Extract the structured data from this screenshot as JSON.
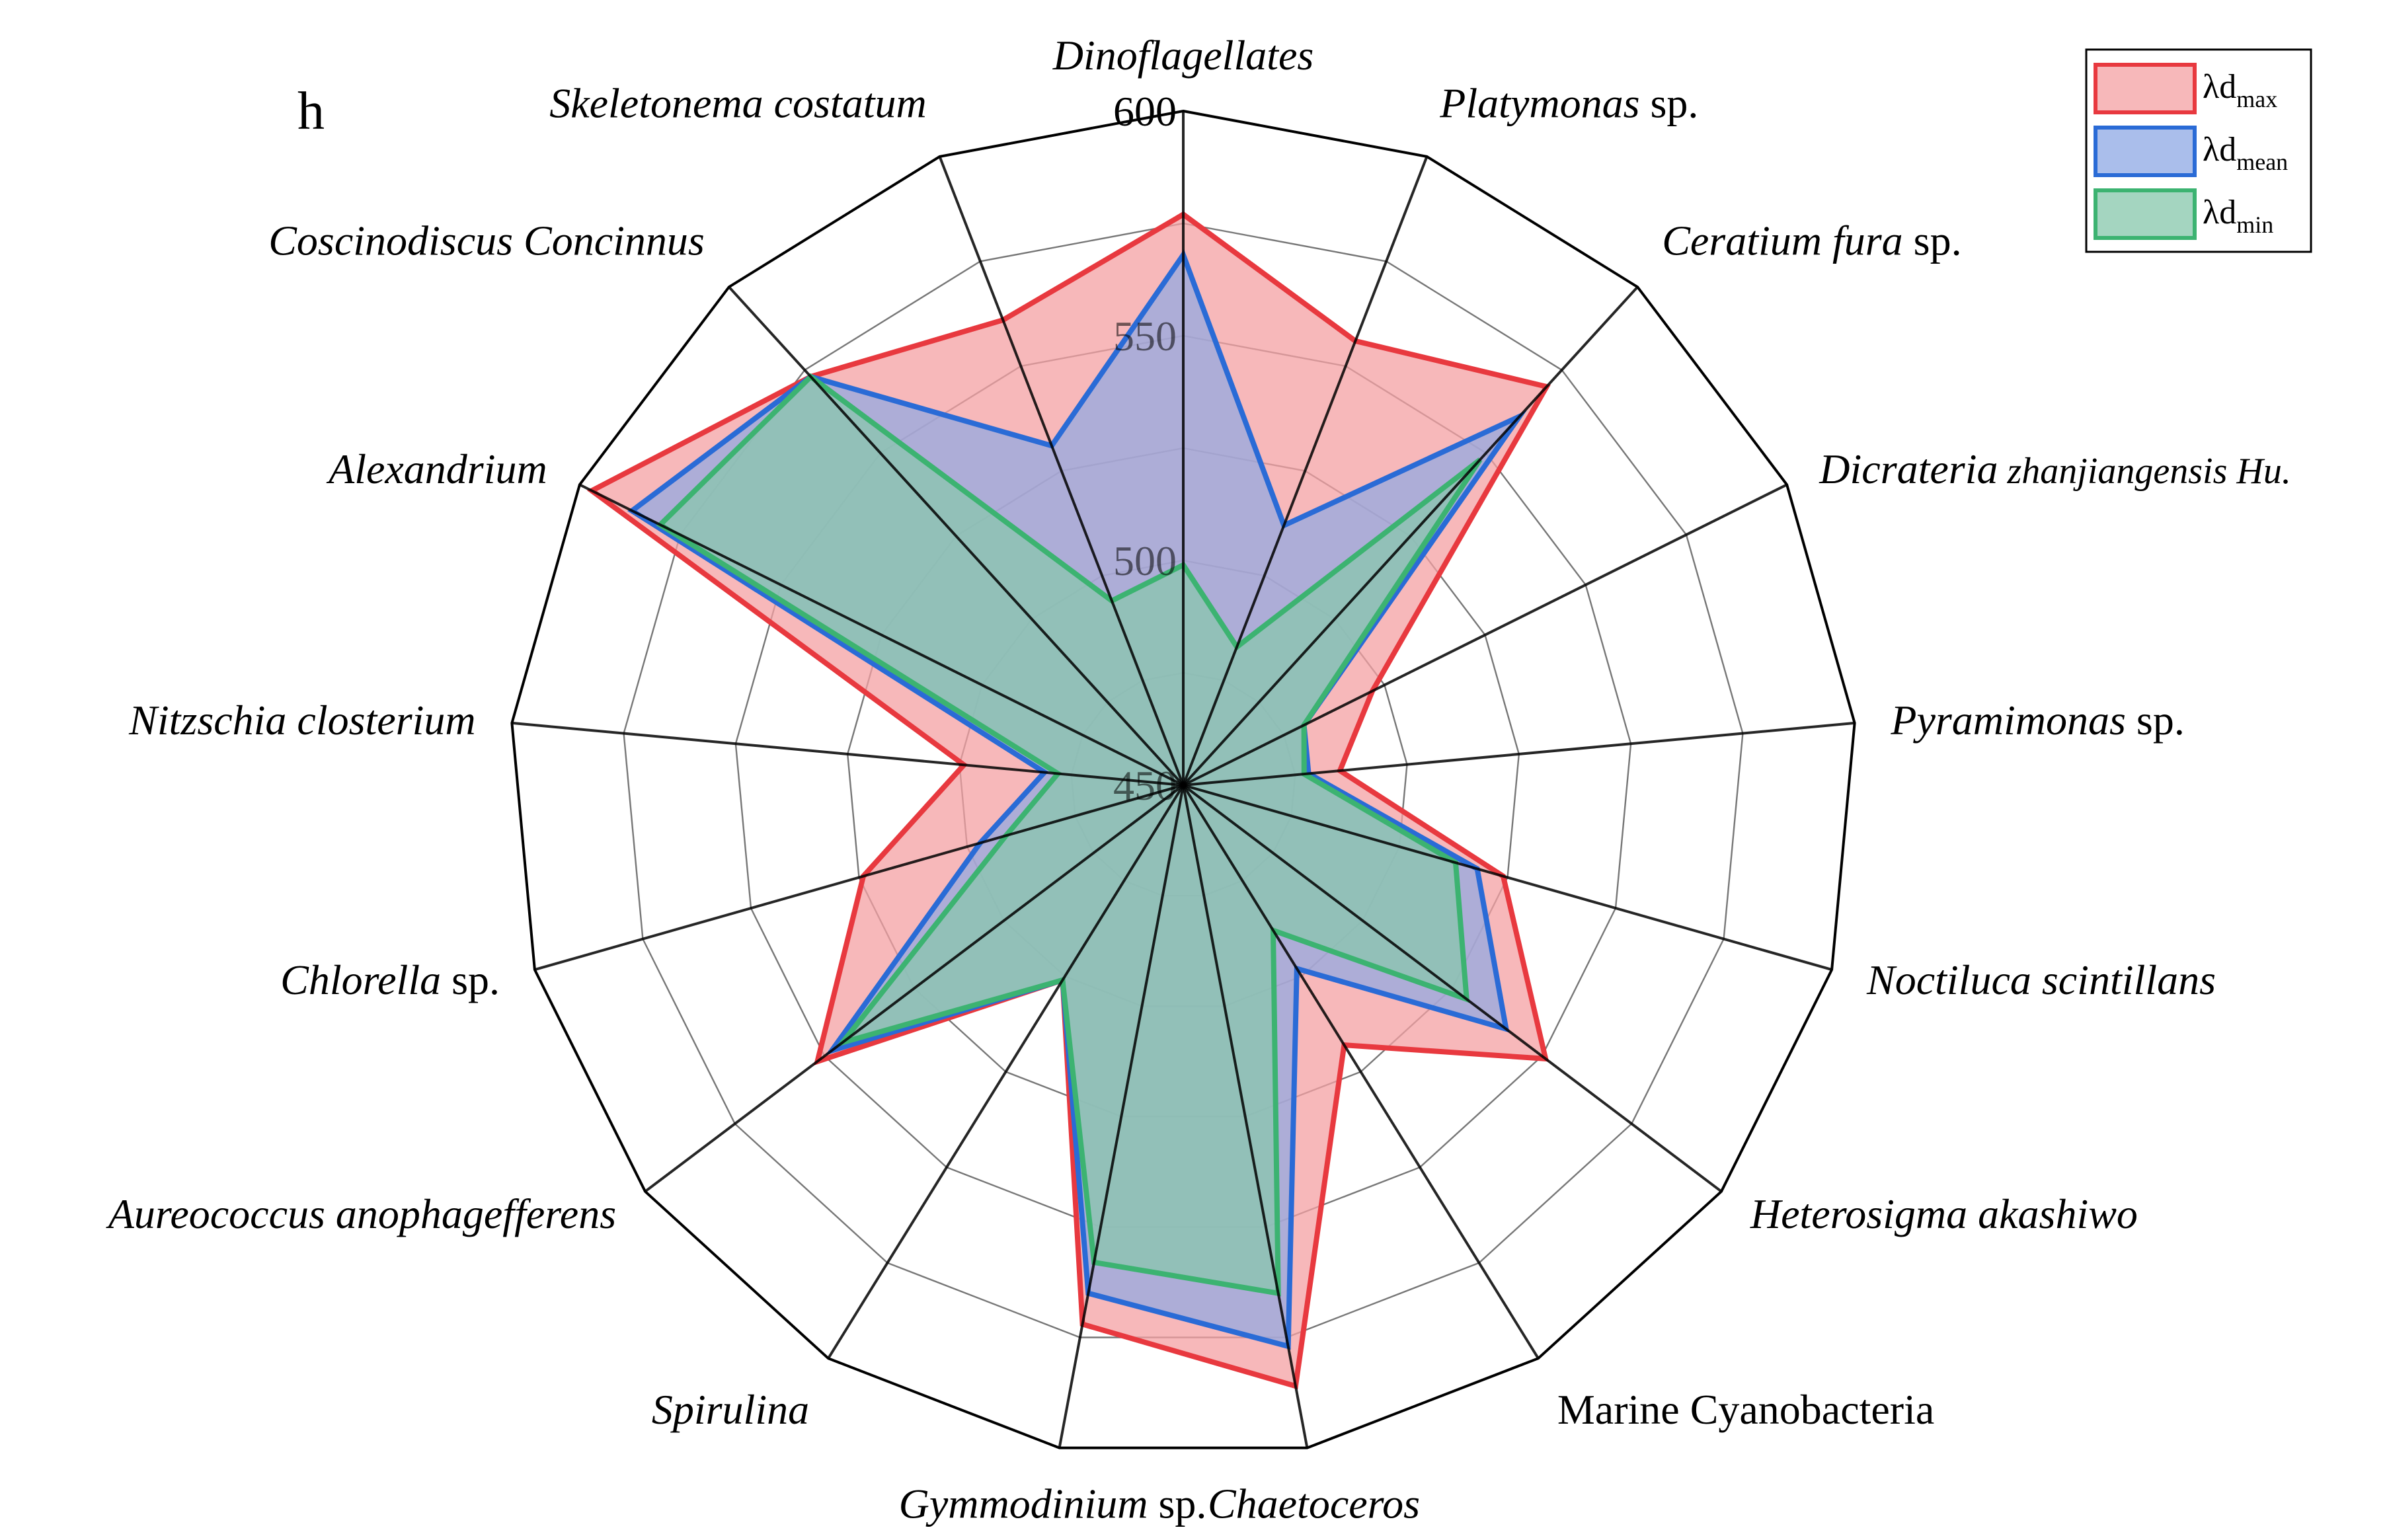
{
  "chart_data": {
    "type": "radar",
    "panel_label": "h",
    "radial_ticks": [
      "450",
      "500",
      "550",
      "600"
    ],
    "rlim": [
      450,
      600
    ],
    "grid": true,
    "legend_position": "top-right",
    "categories": [
      {
        "name": "Dinoflagellates",
        "rest": ""
      },
      {
        "name": "Platymonas",
        "rest": " sp."
      },
      {
        "name": "Ceratium fura",
        "rest": " sp."
      },
      {
        "name": "Dicrateria",
        "rest": " zhanjiangensis Hu."
      },
      {
        "name": "Pyramimonas",
        "rest": " sp."
      },
      {
        "name": "Noctiluca scintillans",
        "rest": ""
      },
      {
        "name": "Heterosigma akashiwo",
        "rest": ""
      },
      {
        "name": "",
        "rest": "Marine Cyanobacteria"
      },
      {
        "name": "Chaetoceros",
        "rest": ""
      },
      {
        "name": "Gymmodinium",
        "rest": " sp."
      },
      {
        "name": "Spirulina",
        "rest": ""
      },
      {
        "name": "Aureococcus anophagefferens",
        "rest": ""
      },
      {
        "name": "Chlorella",
        "rest": " sp."
      },
      {
        "name": "Nitzschia closterium",
        "rest": ""
      },
      {
        "name": "Alexandrium",
        "rest": ""
      },
      {
        "name": "Coscinodiscus Concinnus",
        "rest": ""
      },
      {
        "name": "Skeletonema costatum",
        "rest": ""
      }
    ],
    "series": [
      {
        "name": "λd",
        "sub": "max",
        "color": "#e8393f",
        "fill": "#f4a0a3",
        "values": [
          577,
          556,
          570,
          497,
          485,
          524,
          551,
          518,
          586,
          572,
          501,
          552,
          524,
          499,
          597,
          573,
          561
        ]
      },
      {
        "name": "λd",
        "sub": "mean",
        "color": "#2a6bd6",
        "fill": "#8da8e4",
        "values": [
          568,
          512,
          561,
          480,
          478,
          518,
          540,
          498,
          577,
          565,
          501,
          548,
          497,
          481,
          587,
          573,
          531
        ]
      },
      {
        "name": "λd",
        "sub": "min",
        "color": "#3cb371",
        "fill": "#86c7ab",
        "values": [
          499,
          483,
          548,
          480,
          477,
          513,
          529,
          488,
          565,
          558,
          501,
          545,
          491,
          478,
          580,
          573,
          494
        ]
      }
    ]
  }
}
